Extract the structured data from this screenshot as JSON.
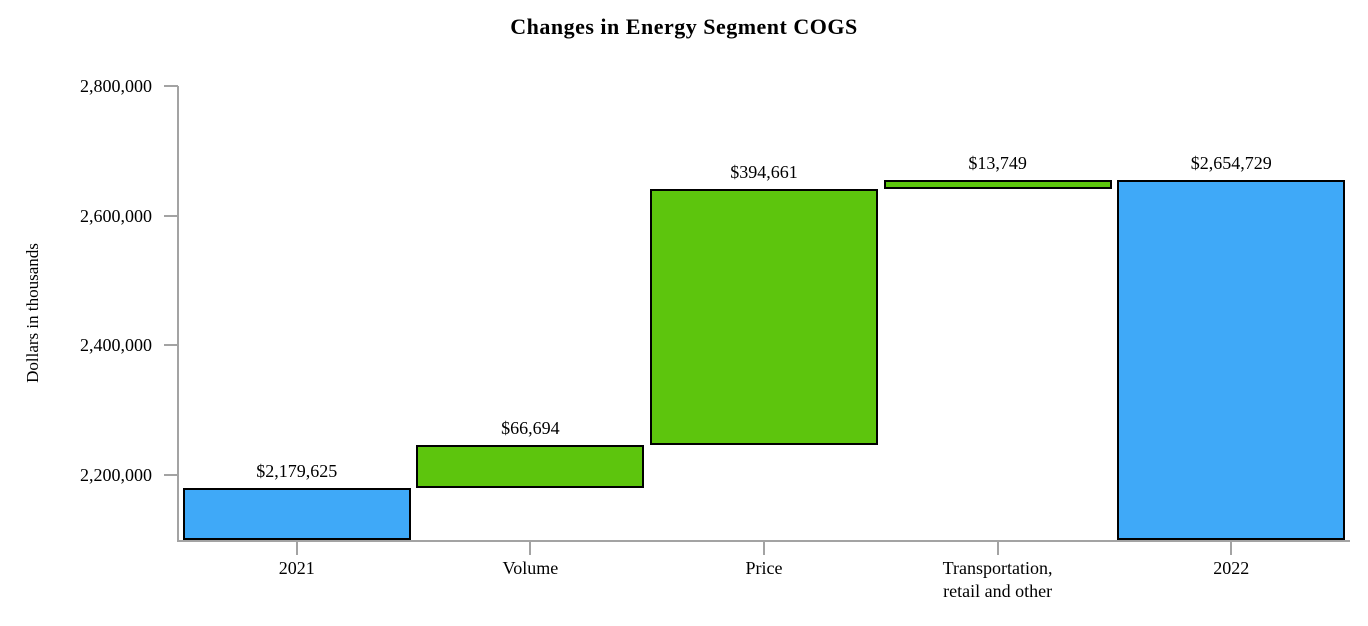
{
  "chart_data": {
    "type": "bar",
    "subtype": "waterfall",
    "title": "Changes in Energy Segment COGS",
    "xlabel": "",
    "ylabel": "Dollars in thousands",
    "ylim": [
      2100000,
      2800000
    ],
    "yticks": [
      2200000,
      2400000,
      2600000,
      2800000
    ],
    "grid": false,
    "legend": false,
    "categories": [
      "2021",
      "Volume",
      "Price",
      "Transportation,\nretail and other",
      "2022"
    ],
    "bars": [
      {
        "category": "2021",
        "kind": "total",
        "value": 2179625,
        "label": "$2,179,625",
        "color_key": "total"
      },
      {
        "category": "Volume",
        "kind": "increase",
        "value": 66694,
        "label": "$66,694",
        "color_key": "change"
      },
      {
        "category": "Price",
        "kind": "increase",
        "value": 394661,
        "label": "$394,661",
        "color_key": "change"
      },
      {
        "category": "Transportation,\nretail and other",
        "kind": "increase",
        "value": 13749,
        "label": "$13,749",
        "color_key": "change"
      },
      {
        "category": "2022",
        "kind": "total",
        "value": 2654729,
        "label": "$2,654,729",
        "color_key": "total"
      }
    ],
    "colors": {
      "total": "#3fa9f8",
      "change": "#5dc50d",
      "bar_border": "#000000",
      "axis": "#a3a3a3",
      "text": "#000000"
    }
  }
}
